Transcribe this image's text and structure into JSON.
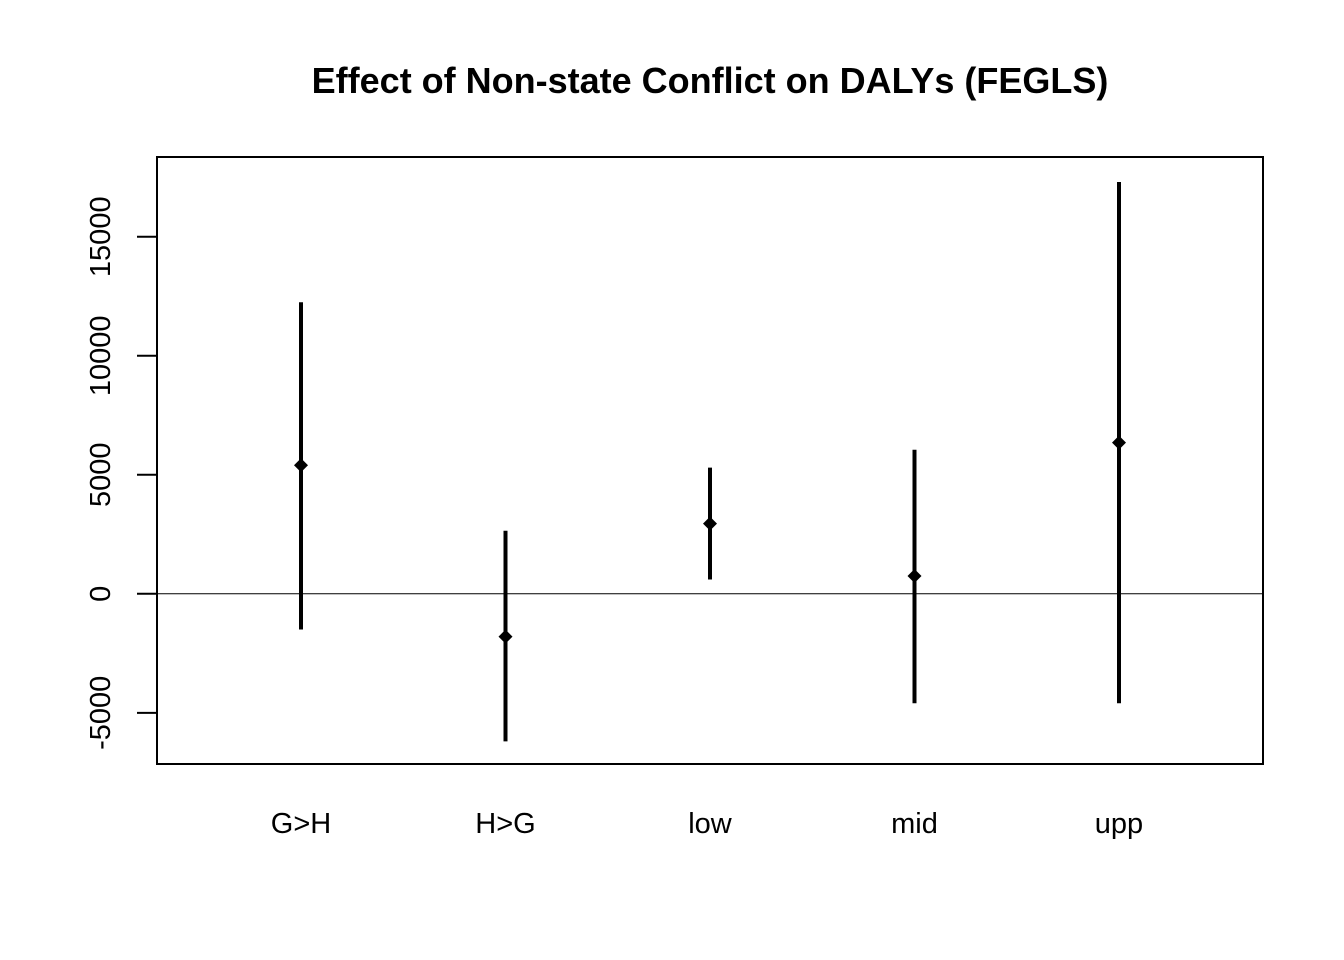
{
  "chart_data": {
    "type": "errorbar",
    "title": "Effect of Non-state Conflict on DALYs (FEGLS)",
    "xlabel": "",
    "ylabel": "",
    "categories": [
      "G>H",
      "H>G",
      "low",
      "mid",
      "upp"
    ],
    "estimates": [
      5400,
      -1800,
      2950,
      750,
      6350
    ],
    "lower": [
      -1500,
      -6200,
      600,
      -4600,
      -4600
    ],
    "upper": [
      12250,
      2650,
      5300,
      6050,
      17300
    ],
    "y_ticks": [
      -5000,
      0,
      5000,
      10000,
      15000
    ],
    "y_tick_labels": [
      "-5000",
      "0",
      "5000",
      "10000",
      "15000"
    ],
    "ylim": [
      -7150,
      18350
    ],
    "reference_line": 0,
    "grid": false,
    "legend": "none",
    "colors": {
      "marks": "#000000",
      "axes": "#000000"
    }
  }
}
